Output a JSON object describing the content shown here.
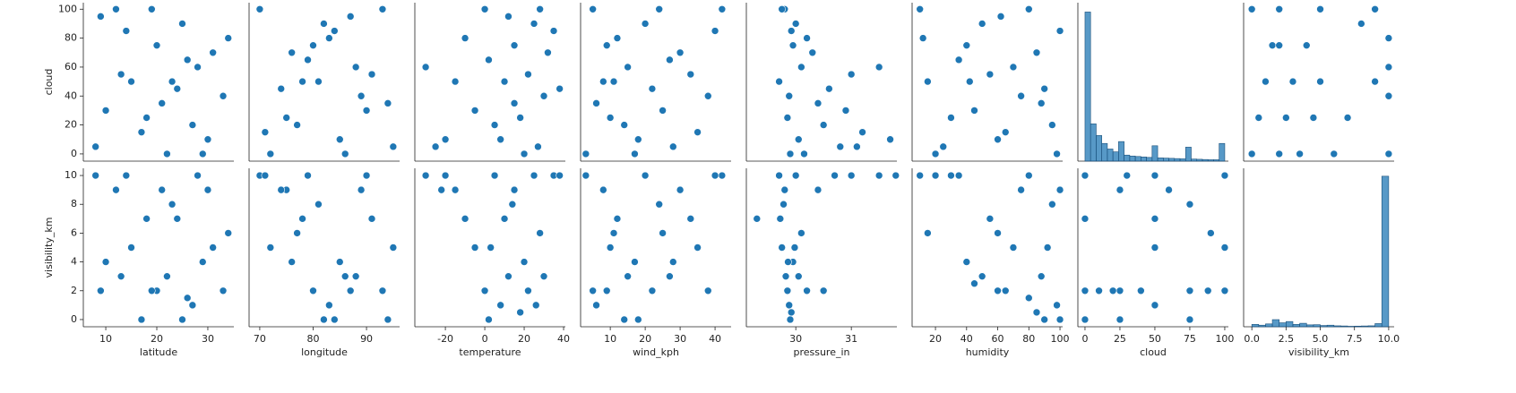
{
  "chart_data": [
    {
      "type": "scatter",
      "color": "#1f77b4",
      "ylabel": "cloud",
      "xlim": [
        5.6,
        35.1
      ],
      "ylim": [
        -5,
        104.5
      ],
      "yticks": [
        0,
        20,
        40,
        60,
        80,
        100
      ],
      "x": [
        8,
        12,
        15,
        18,
        20,
        22,
        25,
        28,
        30,
        33,
        10,
        14,
        19,
        24,
        27,
        31,
        9,
        17,
        23,
        29,
        34,
        21,
        26,
        13
      ],
      "y": [
        5,
        100,
        50,
        25,
        75,
        0,
        90,
        60,
        10,
        40,
        30,
        85,
        100,
        45,
        20,
        70,
        95,
        15,
        50,
        0,
        80,
        35,
        65,
        55
      ]
    },
    {
      "type": "scatter",
      "color": "#1f77b4",
      "xlim": [
        68,
        96.2
      ],
      "ylim": [
        -5,
        104.5
      ],
      "x": [
        70,
        72,
        75,
        78,
        80,
        82,
        85,
        88,
        90,
        93,
        95,
        74,
        77,
        83,
        86,
        91,
        79,
        94,
        71,
        87,
        81,
        76,
        89,
        84
      ],
      "y": [
        100,
        0,
        25,
        50,
        75,
        90,
        10,
        60,
        30,
        100,
        5,
        45,
        20,
        80,
        0,
        55,
        65,
        35,
        15,
        95,
        50,
        70,
        40,
        85
      ]
    },
    {
      "type": "scatter",
      "color": "#1f77b4",
      "xlim": [
        -35.5,
        40.9
      ],
      "ylim": [
        -5,
        104.5
      ],
      "x": [
        -30,
        -20,
        -10,
        -5,
        0,
        5,
        10,
        15,
        20,
        25,
        30,
        35,
        -15,
        2,
        8,
        12,
        18,
        22,
        27,
        32,
        38,
        -25,
        28,
        15
      ],
      "y": [
        60,
        10,
        80,
        30,
        100,
        20,
        50,
        75,
        0,
        90,
        40,
        85,
        50,
        65,
        10,
        95,
        25,
        55,
        5,
        70,
        45,
        5,
        100,
        35
      ]
    },
    {
      "type": "scatter",
      "color": "#1f77b4",
      "xlim": [
        1.5,
        44.6
      ],
      "ylim": [
        -5,
        104.5
      ],
      "x": [
        3,
        5,
        8,
        10,
        12,
        15,
        18,
        20,
        22,
        25,
        28,
        30,
        35,
        38,
        42,
        40,
        6,
        14,
        24,
        33,
        17,
        27,
        9,
        11
      ],
      "y": [
        0,
        100,
        50,
        25,
        80,
        60,
        10,
        90,
        45,
        30,
        5,
        70,
        15,
        40,
        100,
        85,
        35,
        20,
        100,
        55,
        0,
        65,
        75,
        50
      ]
    },
    {
      "type": "scatter",
      "color": "#1f77b4",
      "xlim": [
        29.11,
        31.82
      ],
      "ylim": [
        -5,
        104.5
      ],
      "x": [
        29.7,
        29.8,
        29.85,
        29.9,
        29.95,
        30,
        30.05,
        30.1,
        30.2,
        30.4,
        30.5,
        30.6,
        30.8,
        31,
        31.2,
        31.5,
        31.7,
        29.75,
        30.15,
        29.88,
        30.3,
        30.9,
        31.1,
        29.92
      ],
      "y": [
        50,
        100,
        25,
        0,
        75,
        90,
        10,
        60,
        80,
        35,
        20,
        45,
        5,
        55,
        15,
        60,
        10,
        100,
        0,
        40,
        70,
        30,
        5,
        85
      ]
    },
    {
      "type": "scatter",
      "color": "#1f77b4",
      "xlim": [
        5,
        101.7
      ],
      "ylim": [
        -5,
        104.5
      ],
      "x": [
        10,
        15,
        20,
        30,
        40,
        50,
        60,
        70,
        80,
        90,
        95,
        100,
        25,
        35,
        45,
        55,
        65,
        75,
        85,
        98,
        12,
        88,
        62,
        42
      ],
      "y": [
        100,
        50,
        0,
        25,
        75,
        90,
        10,
        60,
        100,
        45,
        20,
        85,
        5,
        65,
        30,
        55,
        15,
        40,
        70,
        0,
        80,
        35,
        95,
        50
      ]
    },
    {
      "type": "histogram",
      "color": "#1f77b4",
      "xlim": [
        -5.1,
        102.6
      ],
      "ylim": [
        0,
        3400
      ],
      "bins": [
        0,
        4,
        8,
        12,
        16,
        20,
        24,
        28,
        32,
        36,
        40,
        44,
        48,
        52,
        56,
        60,
        64,
        68,
        72,
        76,
        80,
        84,
        88,
        92,
        96,
        100
      ],
      "counts": [
        3200,
        800,
        550,
        380,
        260,
        200,
        420,
        130,
        110,
        100,
        90,
        80,
        330,
        70,
        65,
        60,
        55,
        50,
        300,
        45,
        40,
        35,
        30,
        30,
        380
      ]
    },
    {
      "type": "scatter",
      "color": "#1f77b4",
      "xlim": [
        -0.6,
        10.4
      ],
      "ylim": [
        -5,
        104.5
      ],
      "x": [
        0,
        0,
        0.5,
        1,
        1.5,
        2,
        2,
        2,
        2.5,
        3,
        3.5,
        4,
        4.5,
        5,
        5,
        6,
        7,
        8,
        9,
        9,
        10,
        10,
        10,
        10
      ],
      "y": [
        0,
        100,
        25,
        50,
        75,
        0,
        75,
        100,
        25,
        50,
        0,
        75,
        25,
        50,
        100,
        0,
        25,
        90,
        50,
        100,
        0,
        40,
        80,
        60
      ]
    },
    {
      "type": "scatter",
      "color": "#1f77b4",
      "ylabel": "visibility_km",
      "xlabel": "latitude",
      "xlim": [
        5.6,
        35.1
      ],
      "ylim": [
        -0.5,
        10.5
      ],
      "yticks": [
        0,
        2,
        4,
        6,
        8,
        10
      ],
      "xticks": [
        10,
        20,
        30
      ],
      "x": [
        8,
        12,
        15,
        18,
        20,
        22,
        25,
        28,
        30,
        33,
        10,
        14,
        19,
        24,
        27,
        31,
        9,
        17,
        23,
        29,
        34,
        21,
        26,
        13
      ],
      "y": [
        10,
        9,
        5,
        7,
        2,
        3,
        0,
        10,
        9,
        2,
        4,
        10,
        2,
        7,
        1,
        5,
        2,
        0,
        8,
        4,
        6,
        9,
        1.5,
        3
      ]
    },
    {
      "type": "scatter",
      "color": "#1f77b4",
      "xlabel": "longitude",
      "xlim": [
        68,
        96.2
      ],
      "ylim": [
        -0.5,
        10.5
      ],
      "xticks": [
        70,
        80,
        90
      ],
      "x": [
        70,
        72,
        75,
        78,
        80,
        82,
        85,
        88,
        90,
        93,
        95,
        74,
        77,
        83,
        86,
        91,
        79,
        94,
        71,
        87,
        81,
        76,
        89,
        84
      ],
      "y": [
        10,
        5,
        9,
        7,
        2,
        0,
        4,
        3,
        10,
        2,
        5,
        9,
        6,
        1,
        3,
        7,
        10,
        0,
        10,
        2,
        8,
        4,
        9,
        0
      ]
    },
    {
      "type": "scatter",
      "color": "#1f77b4",
      "xlabel": "temperature",
      "xlim": [
        -35.5,
        40.9
      ],
      "ylim": [
        -0.5,
        10.5
      ],
      "xticks": [
        -20,
        0,
        20,
        40
      ],
      "x": [
        -30,
        -20,
        -15,
        -10,
        -5,
        0,
        2,
        5,
        8,
        10,
        12,
        15,
        18,
        20,
        22,
        25,
        28,
        30,
        35,
        38,
        -22,
        3,
        14,
        26
      ],
      "y": [
        10,
        10,
        9,
        7,
        5,
        2,
        0,
        10,
        1,
        7,
        3,
        9,
        0.5,
        4,
        2,
        10,
        6,
        3,
        10,
        10,
        9,
        5,
        8,
        1
      ]
    },
    {
      "type": "scatter",
      "color": "#1f77b4",
      "xlabel": "wind_kph",
      "xlim": [
        1.5,
        44.6
      ],
      "ylim": [
        -0.5,
        10.5
      ],
      "xticks": [
        10,
        20,
        30,
        40
      ],
      "x": [
        3,
        5,
        8,
        10,
        12,
        15,
        18,
        20,
        22,
        25,
        28,
        30,
        35,
        38,
        42,
        40,
        6,
        14,
        24,
        33,
        17,
        27,
        9,
        11
      ],
      "y": [
        10,
        2,
        9,
        5,
        7,
        3,
        0,
        10,
        2,
        6,
        4,
        9,
        5,
        2,
        10,
        10,
        1,
        0,
        8,
        7,
        4,
        3,
        2,
        6
      ]
    },
    {
      "type": "scatter",
      "color": "#1f77b4",
      "xlabel": "pressure_in",
      "xlim": [
        29.11,
        31.82
      ],
      "ylim": [
        -0.5,
        10.5
      ],
      "xticks": [
        30,
        31
      ],
      "x": [
        29.3,
        29.7,
        29.75,
        29.8,
        29.85,
        29.9,
        29.95,
        30,
        30.05,
        30.1,
        30.5,
        31,
        31.5,
        31.8,
        29.72,
        29.88,
        29.78,
        30.2,
        30.4,
        29.82,
        29.92,
        29.98,
        30.7,
        29.86
      ],
      "y": [
        7,
        10,
        5,
        9,
        2,
        0,
        4,
        10,
        3,
        6,
        2,
        10,
        10,
        10,
        7,
        1,
        8,
        2,
        9,
        3,
        0.5,
        5,
        10,
        4
      ]
    },
    {
      "type": "scatter",
      "color": "#1f77b4",
      "xlabel": "humidity",
      "xlim": [
        5,
        101.7
      ],
      "ylim": [
        -0.5,
        10.5
      ],
      "xticks": [
        20,
        40,
        60,
        80,
        100
      ],
      "x": [
        10,
        20,
        30,
        40,
        50,
        60,
        70,
        80,
        90,
        100,
        15,
        45,
        55,
        65,
        75,
        85,
        95,
        98,
        35,
        60,
        88,
        92,
        80,
        100
      ],
      "y": [
        10,
        10,
        10,
        4,
        3,
        2,
        5,
        1.5,
        0,
        9,
        6,
        2.5,
        7,
        2,
        9,
        0.5,
        8,
        1,
        10,
        6,
        3,
        5,
        10,
        0
      ]
    },
    {
      "type": "scatter",
      "color": "#1f77b4",
      "xlabel": "cloud",
      "xlim": [
        -5.1,
        102.6
      ],
      "ylim": [
        -0.5,
        10.5
      ],
      "xticks": [
        0,
        25,
        50,
        75,
        100
      ],
      "x": [
        0,
        0,
        0,
        0,
        25,
        25,
        25,
        50,
        50,
        50,
        50,
        75,
        75,
        75,
        100,
        100,
        100,
        10,
        40,
        60,
        88,
        20,
        30,
        90
      ],
      "y": [
        10,
        2,
        0,
        7,
        0,
        2,
        9,
        10,
        5,
        1,
        7,
        2,
        8,
        0,
        10,
        2,
        5,
        2,
        2,
        9,
        2,
        2,
        10,
        6
      ]
    },
    {
      "type": "histogram",
      "color": "#1f77b4",
      "xlabel": "visibility_km",
      "xlim": [
        -0.6,
        10.4
      ],
      "ylim": [
        0,
        10000
      ],
      "xticks": [
        {
          "value": 0,
          "label": "0.0"
        },
        2.5,
        {
          "value": 5,
          "label": "5.0"
        },
        7.5,
        {
          "value": 10,
          "label": "10.0"
        }
      ],
      "bins": [
        0,
        0.5,
        1,
        1.5,
        2,
        2.5,
        3,
        3.5,
        4,
        4.5,
        5,
        5.5,
        6,
        6.5,
        7,
        7.5,
        8,
        8.5,
        9,
        9.5,
        10
      ],
      "counts": [
        150,
        100,
        180,
        450,
        250,
        330,
        150,
        220,
        120,
        130,
        80,
        100,
        60,
        50,
        30,
        40,
        50,
        60,
        200,
        9500
      ]
    }
  ]
}
